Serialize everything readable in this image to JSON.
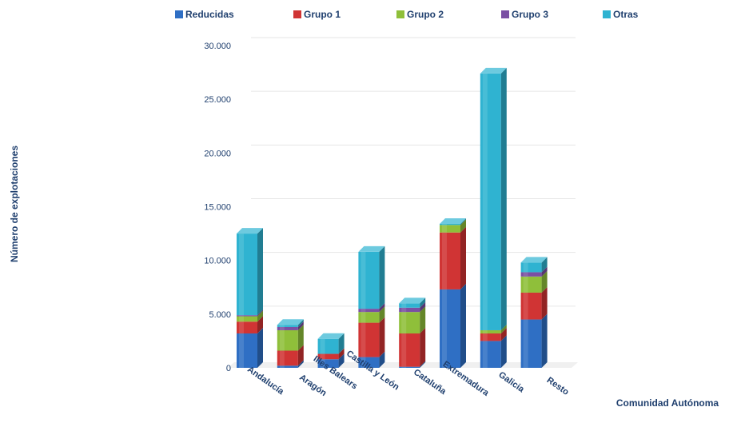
{
  "chart_data": {
    "type": "bar",
    "stacked": true,
    "three_d": true,
    "title": "",
    "xlabel": "Comunidad Autónoma",
    "ylabel": "Número de explotaciones",
    "ylim": [
      0,
      30000
    ],
    "yticks": [
      0,
      5000,
      10000,
      15000,
      20000,
      25000,
      30000
    ],
    "ytick_labels": [
      "0",
      "5.000",
      "10.000",
      "15.000",
      "20.000",
      "25.000",
      "30.000"
    ],
    "grid": true,
    "legend_position": "top",
    "categories": [
      "Andalucía",
      "Aragón",
      "Illes Balears",
      "Castilla y León",
      "Cataluña",
      "Extremadura",
      "Galicia",
      "Resto"
    ],
    "series": [
      {
        "name": "Reducidas",
        "color": "#2f6fc4",
        "values": [
          3200,
          200,
          800,
          1000,
          100,
          7300,
          2500,
          4500
        ]
      },
      {
        "name": "Grupo 1",
        "color": "#d03434",
        "values": [
          1100,
          1400,
          500,
          3200,
          3100,
          5300,
          700,
          2500
        ]
      },
      {
        "name": "Grupo 2",
        "color": "#8fbf3a",
        "values": [
          500,
          1900,
          0,
          1000,
          2000,
          700,
          300,
          1500
        ]
      },
      {
        "name": "Grupo 3",
        "color": "#7a4fa3",
        "values": [
          100,
          300,
          0,
          300,
          400,
          0,
          0,
          400
        ]
      },
      {
        "name": "Otras",
        "color": "#2fb3d1",
        "values": [
          7600,
          200,
          1400,
          5300,
          400,
          100,
          23900,
          900
        ]
      }
    ]
  }
}
